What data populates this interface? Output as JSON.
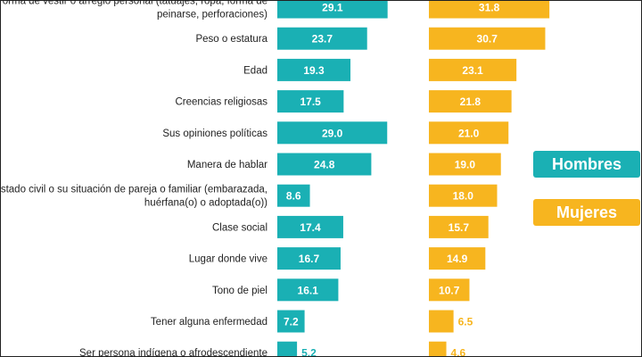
{
  "chart_data": {
    "type": "bar",
    "orientation": "horizontal",
    "categories": [
      [
        "Forma de vestir o arreglo personal (tatuajes, ropa, forma de",
        "peinarse, perforaciones)"
      ],
      [
        "Peso o estatura"
      ],
      [
        "Edad"
      ],
      [
        "Creencias religiosas"
      ],
      [
        "Sus opiniones políticas"
      ],
      [
        "Manera de hablar"
      ],
      [
        "Estado civil o su situación de pareja o familiar (embarazada,",
        "huérfana(o) o adoptada(o))"
      ],
      [
        "Clase social"
      ],
      [
        "Lugar donde vive"
      ],
      [
        "Tono de piel"
      ],
      [
        "Tener alguna enfermedad"
      ],
      [
        "Ser persona indígena o afrodescendiente"
      ]
    ],
    "series": [
      {
        "name": "Hombres",
        "color": "#1ab0b4",
        "values": [
          29.1,
          23.7,
          19.3,
          17.5,
          29.0,
          24.8,
          8.6,
          17.4,
          16.7,
          16.1,
          7.2,
          5.2
        ]
      },
      {
        "name": "Mujeres",
        "color": "#f7b51f",
        "values": [
          31.8,
          30.7,
          23.1,
          21.8,
          21.0,
          19.0,
          18.0,
          15.7,
          14.9,
          10.7,
          6.5,
          4.6
        ]
      }
    ],
    "grid": false,
    "legend": "right"
  }
}
